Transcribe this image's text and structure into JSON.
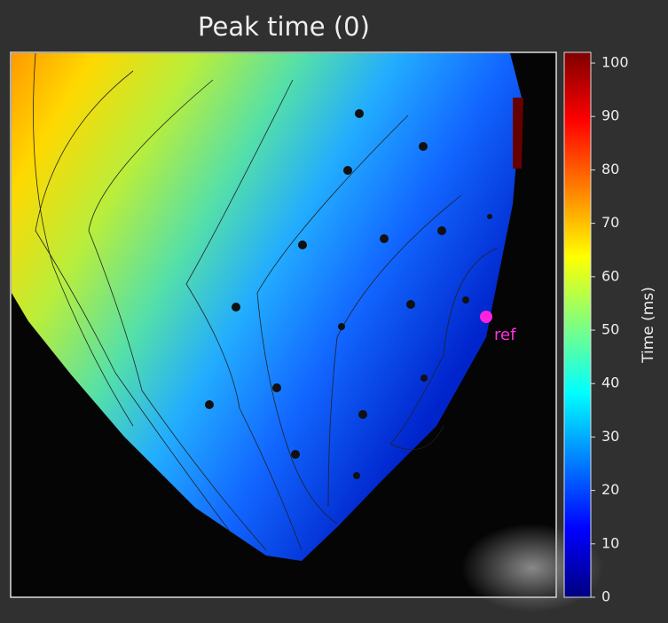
{
  "chart_data": {
    "type": "heatmap",
    "title": "Peak time (0)",
    "colorbar_label": "Time (ms)",
    "annotation": "ref",
    "colormap": "jet",
    "clim": [
      0,
      102
    ],
    "cticks": [
      0,
      10,
      20,
      30,
      40,
      50,
      60,
      70,
      80,
      90,
      100
    ]
  }
}
